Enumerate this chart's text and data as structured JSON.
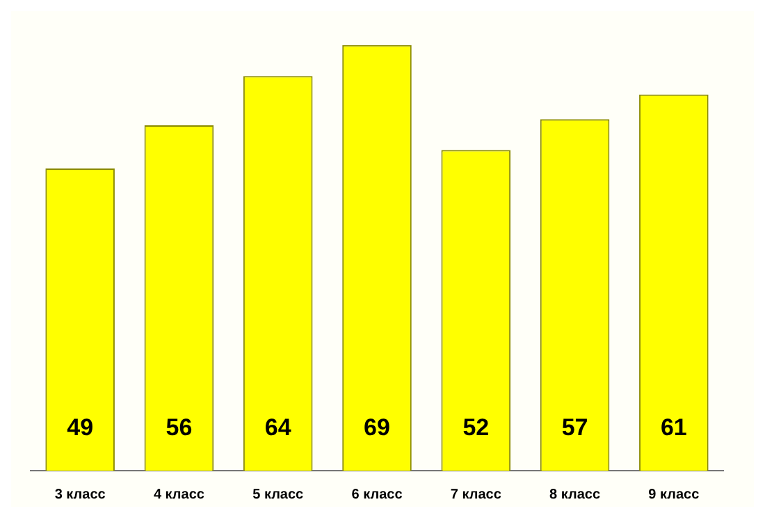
{
  "chart_data": {
    "type": "bar",
    "categories": [
      "3 класс",
      "4 класс",
      "5 класс",
      "6 класс",
      "7 класс",
      "8 класс",
      "9 класс"
    ],
    "values": [
      49,
      56,
      64,
      69,
      52,
      57,
      61
    ],
    "color": "#ffff00",
    "data_labels": true,
    "grid": false,
    "legend": false,
    "tick_labels": "x"
  }
}
